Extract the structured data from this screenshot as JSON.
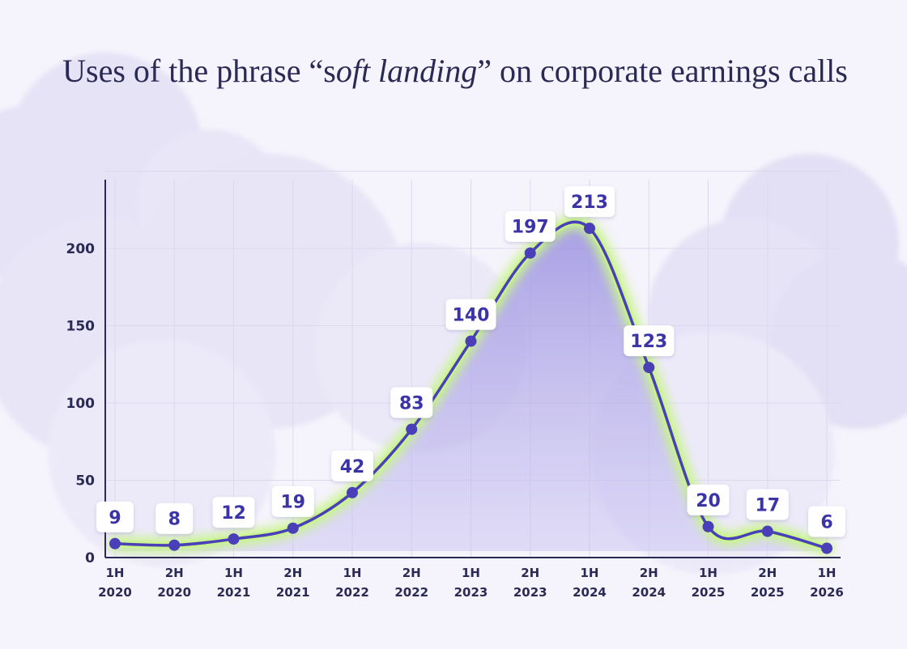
{
  "chart_data": {
    "type": "line",
    "title_parts": [
      "Uses of the phrase “s",
      "oft landing",
      "” on  corporate earnings calls"
    ],
    "categories": [
      [
        "1H",
        "2020"
      ],
      [
        "2H",
        "2020"
      ],
      [
        "1H",
        "2021"
      ],
      [
        "2H",
        "2021"
      ],
      [
        "1H",
        "2022"
      ],
      [
        "2H",
        "2022"
      ],
      [
        "1H",
        "2023"
      ],
      [
        "2H",
        "2023"
      ],
      [
        "1H",
        "2024"
      ],
      [
        "2H",
        "2024"
      ],
      [
        "1H",
        "2025"
      ],
      [
        "2H",
        "2025"
      ],
      [
        "1H",
        "2026"
      ]
    ],
    "values": [
      9,
      8,
      12,
      19,
      42,
      83,
      140,
      197,
      213,
      123,
      20,
      17,
      6
    ],
    "labels": [
      "9",
      "8",
      "12",
      "19",
      "42",
      "83",
      "140",
      "197",
      "213",
      "123",
      "20",
      "17",
      "6"
    ],
    "y_ticks": [
      0,
      50,
      100,
      150,
      200
    ],
    "ylim": [
      0,
      250
    ],
    "xlabel": "",
    "ylabel": "",
    "colors": {
      "line": "#4a3fb8",
      "glow": "#c8f58a",
      "area": "#a79ee6",
      "grid": "#dcd9ee",
      "axis": "#2b2a55",
      "cloud": "#e4e1f6",
      "label_text": "#3b33a8",
      "label_bg": "#ffffff"
    }
  }
}
